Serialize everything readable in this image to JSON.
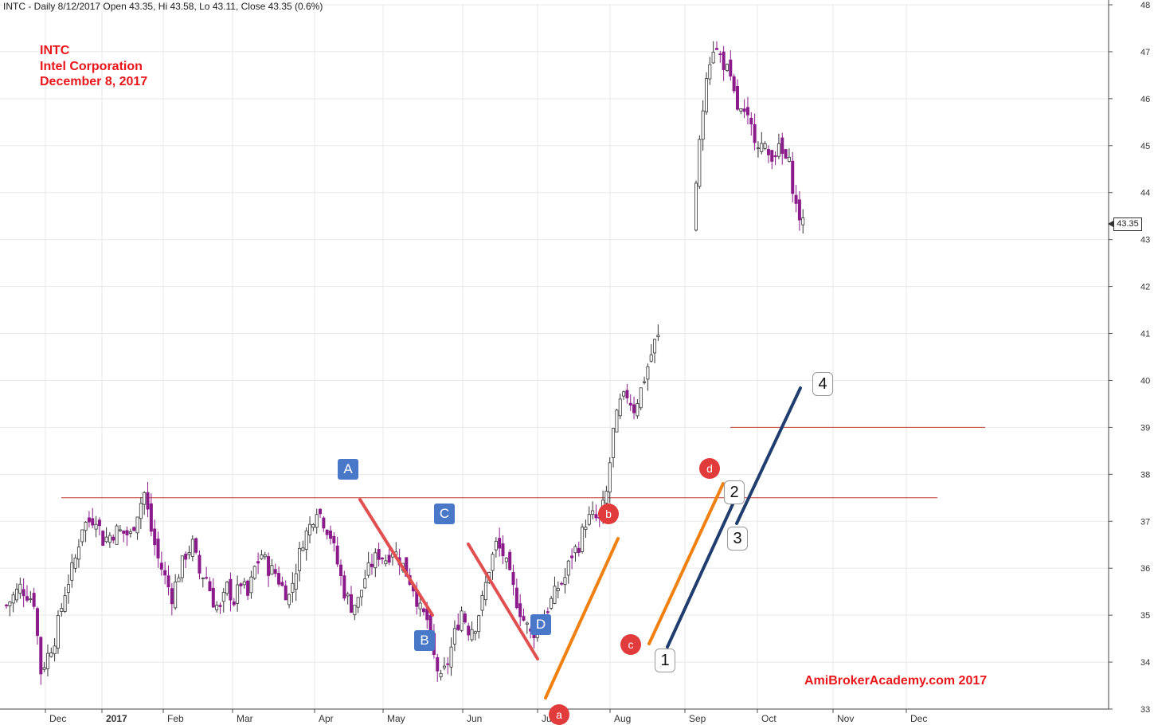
{
  "header": {
    "text": "INTC - Daily 8/12/2017 Open 43.35, Hi 43.58, Lo 43.11, Close 43.35 (0.6%)"
  },
  "annotation": {
    "ticker": "INTC",
    "company": "Intel Corporation",
    "date": "December 8, 2017"
  },
  "watermark": "AmiBrokerAcademy.com 2017",
  "price_tag": "43.35",
  "colors": {
    "up_candle": "#ffffff",
    "down_candle": "#8b1a8b",
    "wick": "#333333",
    "red_line": "#e05050",
    "orange_line": "#f08010",
    "blue_line": "#1f3d6e",
    "hline": "#c0392b",
    "text_red": "#e8161b"
  },
  "chart_data": {
    "type": "candlestick",
    "ylim": [
      33,
      48
    ],
    "y_ticks": [
      "33",
      "34",
      "35",
      "36",
      "37",
      "38",
      "39",
      "40",
      "41",
      "42",
      "43",
      "44",
      "45",
      "46",
      "47",
      "48"
    ],
    "x_ticks": [
      "Dec",
      "2017",
      "Feb",
      "Mar",
      "Apr",
      "May",
      "Jun",
      "Jul",
      "Aug",
      "Sep",
      "Oct",
      "Nov",
      "Dec"
    ],
    "close_path": [
      [
        0,
        35.2
      ],
      [
        4,
        35.6
      ],
      [
        8,
        35.3
      ],
      [
        10,
        33.8
      ],
      [
        14,
        34.5
      ],
      [
        17,
        35.5
      ],
      [
        20,
        36.2
      ],
      [
        22,
        36.9
      ],
      [
        26,
        37.1
      ],
      [
        28,
        36.6
      ],
      [
        32,
        36.8
      ],
      [
        36,
        36.7
      ],
      [
        38,
        37.2
      ],
      [
        40,
        37.6
      ],
      [
        42,
        36.8
      ],
      [
        44,
        36.2
      ],
      [
        46,
        35.8
      ],
      [
        48,
        35.4
      ],
      [
        50,
        35.9
      ],
      [
        52,
        36.3
      ],
      [
        54,
        36.5
      ],
      [
        56,
        35.9
      ],
      [
        58,
        35.8
      ],
      [
        60,
        35.3
      ],
      [
        62,
        35.1
      ],
      [
        64,
        35.6
      ],
      [
        66,
        35.3
      ],
      [
        68,
        35.7
      ],
      [
        70,
        35.4
      ],
      [
        72,
        36.0
      ],
      [
        74,
        36.3
      ],
      [
        76,
        36.0
      ],
      [
        78,
        35.9
      ],
      [
        80,
        35.6
      ],
      [
        82,
        35.4
      ],
      [
        84,
        36.0
      ],
      [
        86,
        36.6
      ],
      [
        88,
        36.9
      ],
      [
        90,
        37.3
      ],
      [
        92,
        37.0
      ],
      [
        94,
        36.7
      ],
      [
        96,
        36.1
      ],
      [
        98,
        35.5
      ],
      [
        100,
        35.2
      ],
      [
        102,
        35.3
      ],
      [
        104,
        35.8
      ],
      [
        106,
        36.1
      ],
      [
        108,
        36.3
      ],
      [
        110,
        36.2
      ],
      [
        112,
        36.4
      ],
      [
        114,
        36.2
      ],
      [
        116,
        35.9
      ],
      [
        118,
        35.6
      ],
      [
        120,
        35.1
      ],
      [
        122,
        34.9
      ],
      [
        124,
        34.1
      ],
      [
        126,
        33.6
      ],
      [
        128,
        34.0
      ],
      [
        130,
        34.6
      ],
      [
        132,
        35.1
      ],
      [
        134,
        34.7
      ],
      [
        136,
        34.8
      ],
      [
        138,
        35.3
      ],
      [
        140,
        36.0
      ],
      [
        142,
        36.5
      ],
      [
        144,
        36.3
      ],
      [
        146,
        35.8
      ],
      [
        148,
        35.3
      ],
      [
        150,
        34.9
      ],
      [
        152,
        34.6
      ],
      [
        154,
        34.7
      ],
      [
        156,
        35.0
      ],
      [
        158,
        35.3
      ],
      [
        160,
        35.6
      ],
      [
        162,
        35.8
      ],
      [
        164,
        36.3
      ],
      [
        166,
        36.5
      ],
      [
        168,
        37.0
      ],
      [
        170,
        37.1
      ],
      [
        172,
        37.0
      ],
      [
        174,
        37.6
      ],
      [
        176,
        38.9
      ],
      [
        178,
        39.5
      ],
      [
        180,
        39.7
      ],
      [
        182,
        39.4
      ],
      [
        184,
        39.8
      ],
      [
        186,
        40.3
      ],
      [
        188,
        40.8
      ],
      [
        189,
        40.9
      ],
      [
        200,
        44.2
      ],
      [
        203,
        46.6
      ],
      [
        205,
        47.1
      ],
      [
        207,
        46.9
      ],
      [
        209,
        46.6
      ],
      [
        212,
        45.8
      ],
      [
        215,
        45.5
      ],
      [
        218,
        45.1
      ],
      [
        221,
        44.8
      ],
      [
        224,
        44.9
      ],
      [
        227,
        44.6
      ],
      [
        229,
        43.7
      ],
      [
        231,
        43.3
      ]
    ],
    "trend_lines": [
      {
        "color": "red",
        "from": [
          452,
          627
        ],
        "to": [
          543,
          772
        ]
      },
      {
        "color": "red",
        "from": [
          588,
          683
        ],
        "to": [
          675,
          827
        ]
      },
      {
        "color": "orange",
        "from": [
          685,
          876
        ],
        "to": [
          776,
          676
        ]
      },
      {
        "color": "orange",
        "from": [
          815,
          808
        ],
        "to": [
          908,
          607
        ]
      },
      {
        "color": "blue",
        "from": [
          838,
          812
        ],
        "to": [
          920,
          633
        ]
      },
      {
        "color": "blue",
        "from": [
          925,
          657
        ],
        "to": [
          1005,
          487
        ]
      }
    ],
    "horizontal_lines": [
      {
        "y": 37.5,
        "x_from": 77,
        "x_to": 1177
      },
      {
        "y": 39.0,
        "x_from": 917,
        "x_to": 1237
      }
    ],
    "labels": {
      "squares": [
        "A",
        "B",
        "C",
        "D"
      ],
      "circles": [
        "a",
        "b",
        "c",
        "d"
      ],
      "boxes": [
        "1",
        "2",
        "3",
        "4"
      ]
    }
  }
}
